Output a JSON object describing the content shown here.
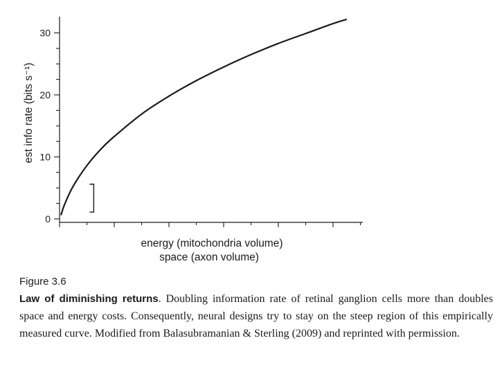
{
  "figure": {
    "label": "Figure 3.6",
    "caption_title": "Law of diminishing returns",
    "caption_body": ". Doubling information rate of retinal ganglion cells more than doubles space and energy costs. Consequently, neural designs try to stay on the steep region of this empirically measured curve. Modified from Balasubramanian & Sterling (2009) and reprinted with permission."
  },
  "chart_data": {
    "type": "line",
    "title": "",
    "xlabel_line1": "energy (mitochondria volume)",
    "xlabel_line2": "space (axon volume)",
    "ylabel": "est info rate (bits s⁻¹)",
    "ylim": [
      0,
      33
    ],
    "xlim": [
      0,
      11
    ],
    "yticks": [
      0,
      10,
      20,
      30
    ],
    "y_minor_ticks": [
      0,
      2.5,
      5,
      7.5,
      10,
      12.5,
      15,
      17.5,
      20,
      22.5,
      25,
      27.5,
      30
    ],
    "x_ticks": [
      0,
      1,
      2,
      3,
      4,
      5,
      6,
      7,
      8,
      9,
      10,
      11
    ],
    "x_tick_labels": false,
    "scale_bar": {
      "x": 1.25,
      "y_from": 1.1,
      "y_to": 5.6
    },
    "series": [
      {
        "x": [
          0.05,
          0.2,
          0.5,
          1,
          1.5,
          2,
          3,
          4,
          5,
          6,
          7,
          8,
          9,
          10,
          10.5
        ],
        "values": [
          0.6,
          2.5,
          5.3,
          8.6,
          11.2,
          13.3,
          16.9,
          19.8,
          22.3,
          24.5,
          26.5,
          28.3,
          29.9,
          31.5,
          32.2
        ]
      }
    ]
  }
}
